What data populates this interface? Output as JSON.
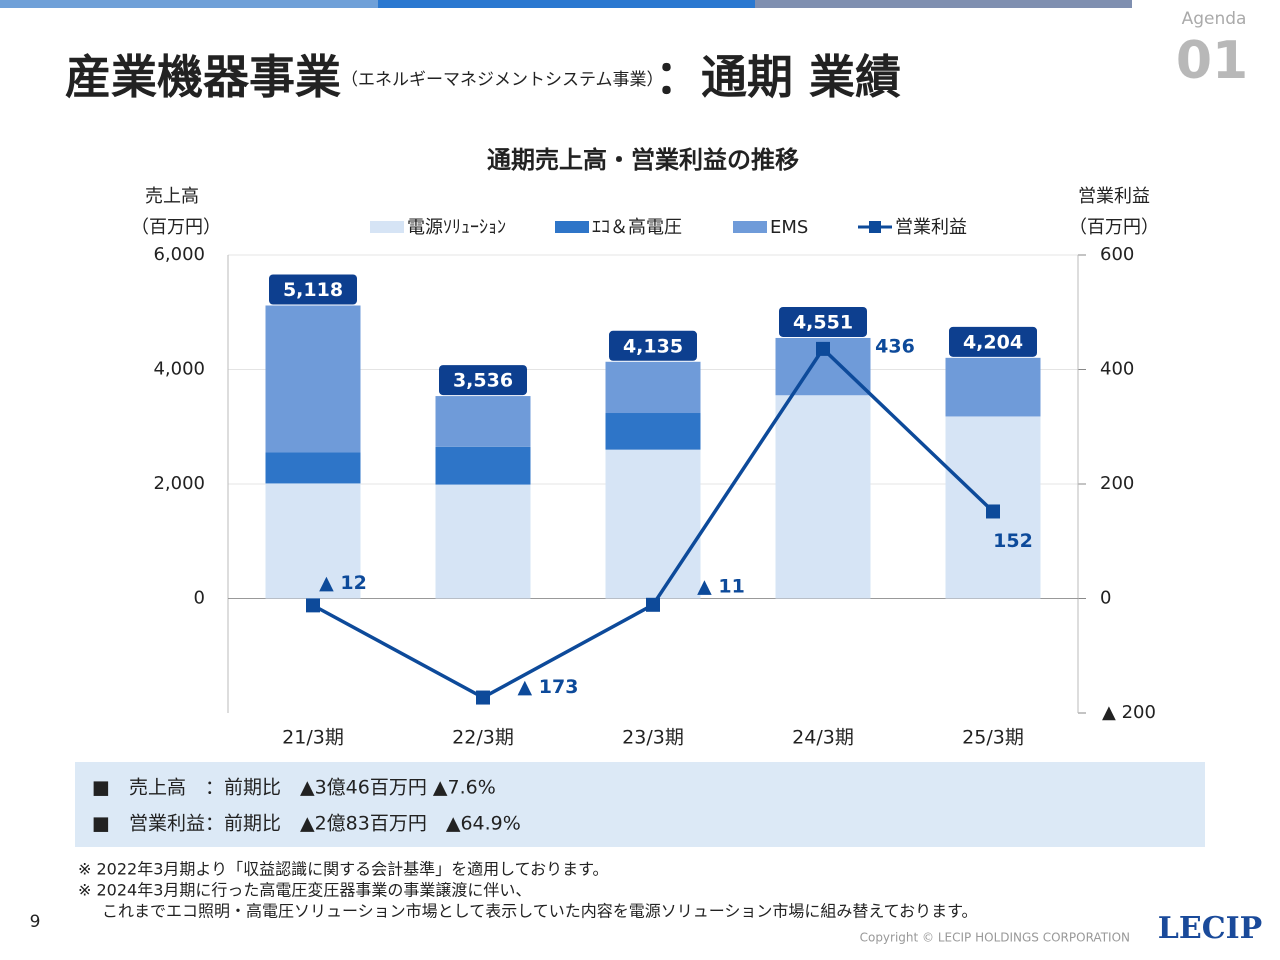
{
  "header": {
    "title_main": "産業機器事業",
    "title_sub": "（エネルギーマネジメントシステム事業）",
    "title_tail": "：通期 業績",
    "agenda": "Agenda",
    "agenda_no": "01"
  },
  "chart_data": {
    "type": "bar",
    "stacked": true,
    "title": "通期売上高・営業利益の推移",
    "y_label": "売上高",
    "y_unit": "（百万円）",
    "y2_label": "営業利益",
    "y2_unit": "（百万円）",
    "categories": [
      "21/3期",
      "22/3期",
      "23/3期",
      "24/3期",
      "25/3期"
    ],
    "series": [
      {
        "name": "電源ｿﾘｭｰｼｮﾝ",
        "color": "#d6e4f5",
        "values": [
          2010,
          1990,
          2600,
          3550,
          3180
        ]
      },
      {
        "name": "ｴｺ＆高電圧",
        "color": "#2e75c8",
        "values": [
          540,
          660,
          640,
          0,
          0
        ]
      },
      {
        "name": "EMS",
        "color": "#6f9bd9",
        "values": [
          2568,
          886,
          895,
          1001,
          1024
        ]
      },
      {
        "name": "営業利益",
        "color": "#0d4a9a",
        "type": "line",
        "axis": "y2",
        "values": [
          -12,
          -173,
          -11,
          436,
          152
        ],
        "value_labels": [
          "▲ 12",
          "▲ 173",
          "▲ 11",
          "436",
          "152"
        ]
      }
    ],
    "totals": {
      "values": [
        5118,
        3536,
        4135,
        4551,
        4204
      ],
      "value_labels": [
        "5,118",
        "3,536",
        "4,135",
        "4,551",
        "4,204"
      ]
    },
    "ylim": [
      -2000,
      6000
    ],
    "yticks": [
      0,
      {
        "value": 2000,
        "label": "2,000"
      },
      {
        "value": 4000,
        "label": "4,000"
      },
      {
        "value": 6000,
        "label": "6,000"
      }
    ],
    "y2lim": [
      -200,
      600
    ],
    "y2ticks": [
      {
        "value": -200,
        "label": "▲ 200"
      },
      0,
      200,
      400,
      600
    ],
    "grid": true
  },
  "summary": [
    "■　売上高　：前期比　▲3億46百万円 ▲7.6%",
    "■　営業利益：前期比　▲2億83百万円　▲64.9%"
  ],
  "notes": [
    "※ 2022年3月期より「収益認識に関する会計基準」を適用しております。",
    "※ 2024年3月期に行った高電圧変圧器事業の事業譲渡に伴い、",
    "これまでエコ照明・高電圧ソリューション市場として表示していた内容を電源ソリューション市場に組み替えております。"
  ],
  "footer": {
    "page": "9",
    "copyright": "Copyright © LECIP HOLDINGS CORPORATION",
    "logo": "LECIP"
  }
}
